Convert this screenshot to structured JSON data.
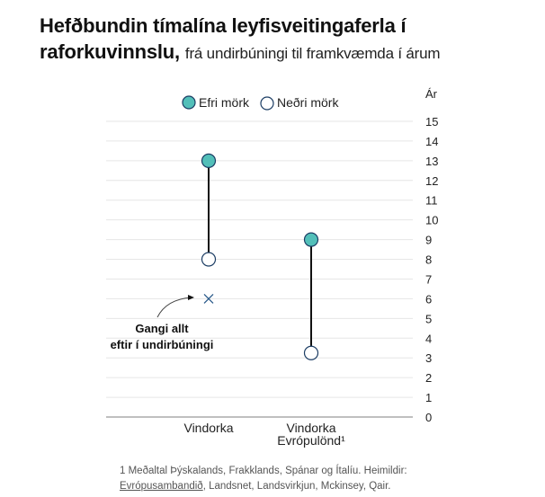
{
  "title": "Hefðbundin tímalína leyfisveitingaferla í",
  "title_line2": "raforkuvinnslu,",
  "subtitle": "frá undirbúningi til framkvæmda í árum",
  "chart_data": {
    "type": "range-dot",
    "ylabel": "Ár",
    "ylim": [
      0,
      15
    ],
    "yticks": [
      0,
      1,
      2,
      3,
      4,
      5,
      6,
      7,
      8,
      9,
      10,
      11,
      12,
      13,
      14,
      15
    ],
    "y_axis_position": "right",
    "grid": true,
    "legend_position": "top",
    "categories": [
      "Vindorka",
      "Vindorka Evrópulönd¹"
    ],
    "category_lines": [
      [
        "Vindorka"
      ],
      [
        "Vindorka",
        "Evrópulönd¹"
      ]
    ],
    "series": [
      {
        "name": "Efri mörk",
        "values": [
          13,
          9
        ],
        "color": "#52bfb9",
        "filled": true
      },
      {
        "name": "Neðri mörk",
        "values": [
          8,
          3.25
        ],
        "color": "#1c3d64",
        "filled": false
      }
    ],
    "annotation": {
      "category": "Vindorka",
      "value": 6,
      "marker": "x",
      "text": [
        "Gangi allt",
        "eftir í undirbúningi"
      ],
      "color": "#2b5b8a"
    }
  },
  "footnote": {
    "line1": "1 Meðaltal Þýskalands, Frakklands, Spánar og Ítalíu. Heimildir:",
    "link": "Evrópusambandið",
    "line2_rest": ", Landsnet, Landsvirkjun, Mckinsey, Qair."
  }
}
